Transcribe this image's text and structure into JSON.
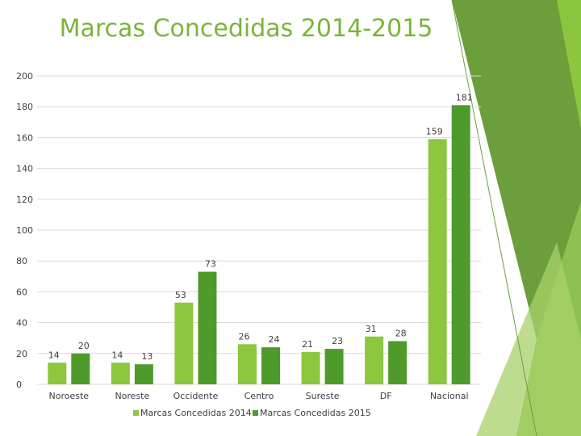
{
  "colors": {
    "title": "#7ab43a",
    "series_2014": "#8dc63f",
    "series_2015": "#4e9b2c",
    "decor_light": "#a8d06a",
    "decor_mid": "#8cc152",
    "decor_dark": "#6d9e3c",
    "grid": "#d9d9d9",
    "text": "#404040"
  },
  "chart_data": {
    "type": "bar",
    "title": "Marcas Concedidas 2014-2015",
    "categories": [
      "Noroeste",
      "Noreste",
      "Occidente",
      "Centro",
      "Sureste",
      "DF",
      "Nacional"
    ],
    "series": [
      {
        "name": "Marcas Concedidas 2014",
        "values": [
          14,
          14,
          53,
          26,
          21,
          31,
          159
        ]
      },
      {
        "name": "Marcas Concedidas  2015",
        "values": [
          20,
          13,
          73,
          24,
          23,
          28,
          181
        ]
      }
    ],
    "y_ticks": [
      "0",
      "20",
      "40",
      "60",
      "80",
      "100",
      "120",
      "140",
      "160",
      "180",
      "200"
    ],
    "ylim": [
      0,
      200
    ],
    "grid": true,
    "legend": "bottom"
  }
}
